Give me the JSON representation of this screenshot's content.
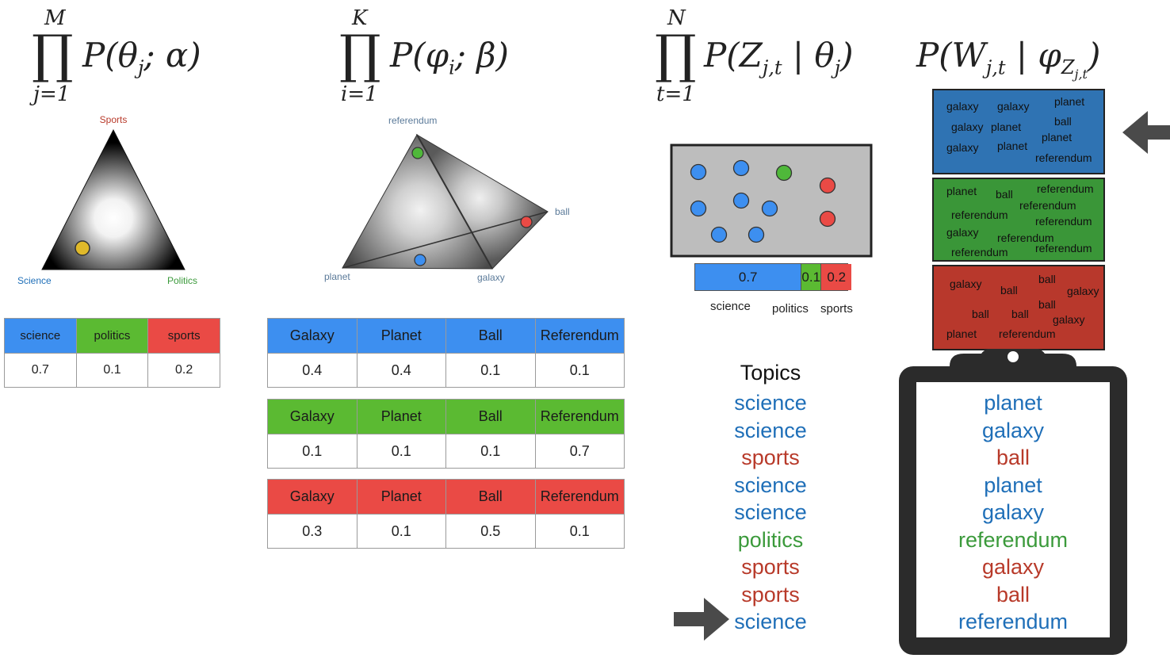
{
  "formulas": {
    "f1": {
      "upper": "M",
      "lower": "j=1",
      "text": "P(θ",
      "sub": "j",
      "text2": "; α)"
    },
    "f2": {
      "upper": "K",
      "lower": "i=1",
      "text": "P(φ",
      "sub": "i",
      "text2": "; β)"
    },
    "f3": {
      "upper": "N",
      "lower": "t=1",
      "text": "P(Z",
      "sub": "j,t",
      "text2": " | θ",
      "sub2": "j",
      "text3": ")"
    },
    "f4": {
      "text": "P(W",
      "sub": "j,t",
      "text2": " | φ",
      "sub2": "Z",
      "subsub": "j,t",
      "text3": ")"
    }
  },
  "simplex1": {
    "top": "Sports",
    "left": "Science",
    "right": "Politics"
  },
  "simplex2": {
    "top": "referendum",
    "right": "ball",
    "left": "planet",
    "bottom": "galaxy"
  },
  "topic_table": {
    "headers": [
      "science",
      "politics",
      "sports"
    ],
    "values": [
      "0.7",
      "0.1",
      "0.2"
    ]
  },
  "word_tables": [
    {
      "headers": [
        "Galaxy",
        "Planet",
        "Ball",
        "Referendum"
      ],
      "values": [
        "0.4",
        "0.4",
        "0.1",
        "0.1"
      ]
    },
    {
      "headers": [
        "Galaxy",
        "Planet",
        "Ball",
        "Referendum"
      ],
      "values": [
        "0.1",
        "0.1",
        "0.1",
        "0.7"
      ]
    },
    {
      "headers": [
        "Galaxy",
        "Planet",
        "Ball",
        "Referendum"
      ],
      "values": [
        "0.3",
        "0.1",
        "0.5",
        "0.1"
      ]
    }
  ],
  "bar": {
    "values": [
      "0.7",
      "0.1",
      "0.2"
    ],
    "labels": [
      "science",
      "politics",
      "sports"
    ],
    "fractions": [
      0.7,
      0.1,
      0.2
    ]
  },
  "topics": {
    "title": "Topics",
    "items": [
      "science",
      "science",
      "sports",
      "science",
      "science",
      "politics",
      "sports",
      "sports",
      "science"
    ]
  },
  "doc_blue": [
    "galaxy",
    "galaxy",
    "planet",
    "galaxy",
    "planet",
    "ball",
    "planet",
    "galaxy",
    "planet",
    "referendum"
  ],
  "doc_green": [
    "planet",
    "ball",
    "referendum",
    "referendum",
    "referendum",
    "referendum",
    "galaxy",
    "referendum",
    "referendum",
    "referendum"
  ],
  "doc_red": [
    "galaxy",
    "ball",
    "ball",
    "galaxy",
    "ball",
    "ball",
    "ball",
    "galaxy",
    "planet",
    "referendum"
  ],
  "words": {
    "items": [
      "planet",
      "galaxy",
      "ball",
      "planet",
      "galaxy",
      "referendum",
      "galaxy",
      "ball",
      "referendum"
    ]
  },
  "colors": {
    "science": "#1f6fb8",
    "politics": "#3b9a3b",
    "sports": "#b83a2a",
    "blue": "#3d8ff0",
    "green": "#5bba32",
    "red": "#ea4a45"
  }
}
